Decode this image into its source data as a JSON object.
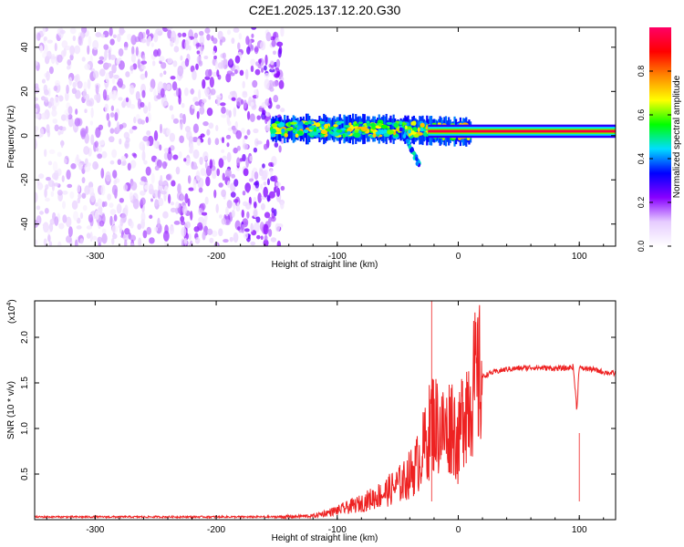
{
  "title": "C2E1.2025.137.12.20.G30",
  "chart_data": [
    {
      "id": "spectrogram",
      "type": "heatmap",
      "title": "C2E1.2025.137.12.20.G30",
      "xlabel": "Height of straight line (km)",
      "ylabel": "Frequency (Hz)",
      "xlim": [
        -350,
        130
      ],
      "ylim": [
        -50,
        49
      ],
      "xticks": [
        -300,
        -200,
        -100,
        0,
        100
      ],
      "yticks": [
        -40,
        -20,
        0,
        20,
        40
      ],
      "colorbar": {
        "label": "Normalized spectral amplitude",
        "range": [
          0,
          1
        ],
        "ticks": [
          0,
          0.2,
          0.4,
          0.6,
          0.8
        ],
        "tick_labels": [
          "0.0",
          "0.2",
          "0.4",
          "0.6",
          "0.8"
        ],
        "colors": [
          "#ffffff",
          "#e6ccff",
          "#8800ff",
          "#0000ff",
          "#00ddff",
          "#00ff00",
          "#ffff00",
          "#ff8800",
          "#ff0000",
          "#ff0066"
        ]
      },
      "regions": [
        {
          "name": "noise",
          "x": [
            -350,
            -145
          ],
          "freq_range": [
            -50,
            49
          ],
          "amplitude": 0.12
        },
        {
          "name": "wideband-signal",
          "x": [
            -155,
            10
          ],
          "center_hz": 3,
          "half_width_hz": 5,
          "amplitude": 0.5
        },
        {
          "name": "narrowband-line",
          "x": [
            -25,
            130
          ],
          "center_hz": 2,
          "half_width_hz": 1,
          "amplitude": 0.95
        },
        {
          "name": "drift-tail",
          "x": [
            -48,
            -32
          ],
          "freq_range": [
            -14,
            5
          ],
          "amplitude": 0.35
        }
      ]
    },
    {
      "id": "snr",
      "type": "line",
      "xlabel": "Height of straight line (km)",
      "ylabel": "SNR (10 * v/v)",
      "y_multiplier": "(x10",
      "y_multiplier_exp": "4",
      "y_multiplier_close": ")",
      "xlim": [
        -350,
        130
      ],
      "ylim": [
        0,
        2.4
      ],
      "xticks": [
        -300,
        -200,
        -100,
        0,
        100
      ],
      "yticks": [
        0.5,
        1.0,
        1.5,
        2.0
      ],
      "ytick_labels": [
        "0.5",
        "1.0",
        "1.5",
        "2.0"
      ],
      "color": "#ee2222",
      "series": [
        {
          "name": "SNR",
          "x": [
            -350,
            -250,
            -150,
            -120,
            -100,
            -80,
            -60,
            -45,
            -35,
            -25,
            -22,
            -15,
            -10,
            -5,
            0,
            5,
            8,
            12,
            18,
            25,
            30,
            40,
            60,
            80,
            90,
            95,
            98,
            100,
            102,
            105,
            110,
            120,
            130
          ],
          "y": [
            0.03,
            0.03,
            0.03,
            0.04,
            0.1,
            0.18,
            0.3,
            0.42,
            0.58,
            0.9,
            1.1,
            1.0,
            0.95,
            1.1,
            0.8,
            1.3,
            1.3,
            1.45,
            1.55,
            1.6,
            1.62,
            1.65,
            1.67,
            1.66,
            1.66,
            1.68,
            1.2,
            1.7,
            1.65,
            1.66,
            1.65,
            1.62,
            1.6
          ]
        }
      ],
      "annotations": [
        {
          "label": "spike",
          "x": -22,
          "y": 2.4
        },
        {
          "label": "dip",
          "x": 100,
          "y": 0.95
        }
      ]
    }
  ]
}
